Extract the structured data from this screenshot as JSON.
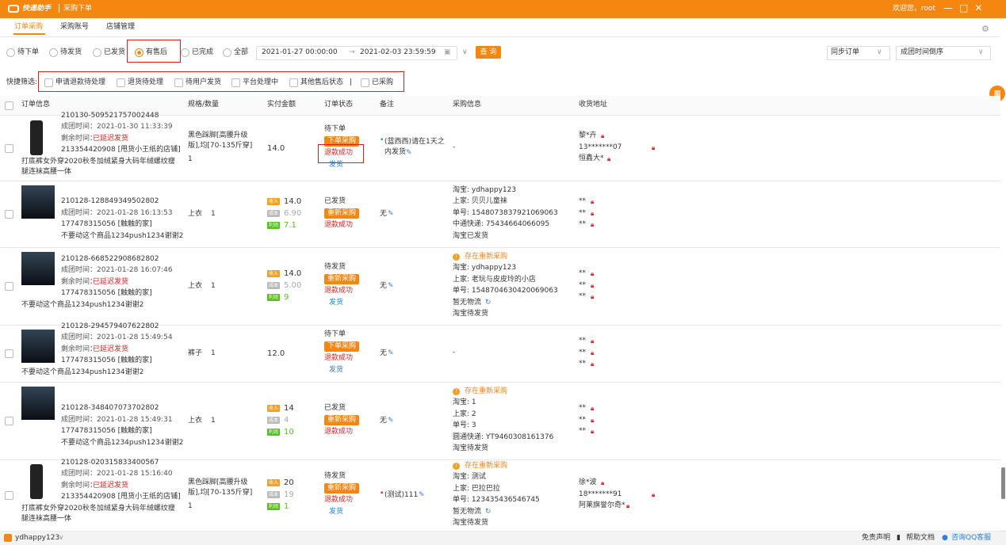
{
  "titlebar": {
    "logo": "快递助手",
    "title": "采购下单",
    "user": "欢迎您，root"
  },
  "tabs": [
    "订单采购",
    "采购账号",
    "店铺管理"
  ],
  "status_filters": [
    "待下单",
    "待发货",
    "已发货",
    "有售后",
    "已完成",
    "全部"
  ],
  "date_start": "2021-01-27 00:00:00",
  "date_arrow": "→",
  "date_end": "2021-02-03 23:59:59",
  "query_button": "查 询",
  "sync_select": "同步订单",
  "sort_select": "成团时间倒序",
  "quick_filter": {
    "label": "快捷筛选:",
    "options": [
      "申请退款待处理",
      "退货待处理",
      "待用户发货",
      "平台处理中",
      "其他售后状态",
      "已采购"
    ]
  },
  "table": {
    "headers": [
      "订单信息",
      "规格/数量",
      "实付金额",
      "订单状态",
      "备注",
      "采购信息",
      "收货地址"
    ],
    "amount_labels": [
      "收入",
      "成本",
      "利润"
    ],
    "rows": [
      {
        "order_id": "210130-509521757002448",
        "group_time": "成团时间：2021-01-30 11:33:39",
        "remaining": {
          "label": "剩余时间：",
          "value": "已延迟发货"
        },
        "shop": "213354420908 [甩货小王纸的店铺]",
        "product": "打底裤女外穿2020秋冬加绒紧身大码年绒螺纹瘦腿连袜高腰一体",
        "spec": "黑色踩脚[高腰升级版],均[70-135斤穿]",
        "qty": "1",
        "amount": "14.0",
        "status": {
          "state": "待下单",
          "button": "下单采购",
          "refund": "退款成功",
          "ship": "发货"
        },
        "remark": "(蓝西西)请在1天之内发货",
        "purchase": {
          "lines": [
            "-"
          ]
        },
        "address": [
          "黎*卉",
          "13*******07",
          "恒鑫大*"
        ]
      },
      {
        "order_id": "210128-128849349502802",
        "group_time": "成团时间：2021-01-28 16:13:53",
        "shop": "177478315056 [触触的家]",
        "product": "不要动这个商品1234push1234谢谢2",
        "spec": "上衣",
        "qty": "1",
        "amount": {
          "income": "14.0",
          "cost": "6.90",
          "profit": "7.1"
        },
        "status": {
          "state": "已发货",
          "button": "重新采购",
          "refund": "退款成功"
        },
        "remark": "无",
        "purchase": {
          "lines": [
            "淘宝: ydhappy123",
            "上家: 贝贝儿童袜",
            "单号: 1548073837921069063",
            "中通快递: 75434664066095",
            "淘宝已发货"
          ]
        },
        "address": [
          "**",
          "**",
          "**"
        ]
      },
      {
        "order_id": "210128-668522908682802",
        "group_time": "成团时间：2021-01-28 16:07:46",
        "remaining": {
          "label": "剩余时间：",
          "value": "已延迟发货"
        },
        "shop": "177478315056 [触触的家]",
        "product": "不要动这个商品1234push1234谢谢2",
        "spec": "上衣",
        "qty": "1",
        "amount": {
          "income": "14.0",
          "cost": "5.00",
          "profit": "9"
        },
        "status": {
          "state": "待发货",
          "button": "重新采购",
          "refund": "退款成功",
          "ship": "发货"
        },
        "remark": "无",
        "purchase": {
          "warning": "存在重新采购",
          "lines": [
            "淘宝: ydhappy123",
            "上家: 老玩与皮皮玲的小店",
            "单号: 1548704630420069063",
            "暂无物流",
            "淘宝待发货"
          ]
        },
        "address": [
          "**",
          "**",
          "**"
        ]
      },
      {
        "order_id": "210128-294579407622802",
        "group_time": "成团时间：2021-01-28 15:49:54",
        "remaining": {
          "label": "剩余时间：",
          "value": "已延迟发货"
        },
        "shop": "177478315056 [触触的家]",
        "product": "不要动这个商品1234push1234谢谢2",
        "spec": "裤子",
        "qty": "1",
        "amount": "12.0",
        "status": {
          "state": "待下单",
          "button": "下单采购",
          "refund": "退款成功",
          "ship": "发货"
        },
        "remark": "无",
        "purchase": {
          "lines": [
            "-"
          ]
        },
        "address": [
          "**",
          "**",
          "**"
        ]
      },
      {
        "order_id": "210128-348407073702802",
        "group_time": "成团时间：2021-01-28 15:49:31",
        "shop": "177478315056 [触触的家]",
        "product": "不要动这个商品1234push1234谢谢2",
        "spec": "上衣",
        "qty": "1",
        "amount": {
          "income": "14",
          "cost": "4",
          "profit": "10"
        },
        "status": {
          "state": "已发货",
          "button": "重新采购",
          "refund": "退款成功"
        },
        "remark": "无",
        "purchase": {
          "warning": "存在重新采购",
          "lines": [
            "淘宝: 1",
            "上家: 2",
            "单号: 3",
            "圆通快递: YT9460308161376",
            "淘宝待发货"
          ]
        },
        "address": [
          "**",
          "**",
          "**"
        ]
      },
      {
        "order_id": "210128-020315833400567",
        "group_time": "成团时间：2021-01-28 15:16:40",
        "remaining": {
          "label": "剩余时间：",
          "value": "已延迟发货"
        },
        "shop": "213354420908 [甩货小王纸的店铺]",
        "product": "打底裤女外穿2020秋冬加绒紧身大码年绒螺纹瘦腿连袜高腰一体",
        "spec": "黑色踩脚[高腰升级版],均[70-135斤穿]",
        "qty": "1",
        "amount": {
          "income": "20",
          "cost": "19",
          "profit": "1"
        },
        "status": {
          "state": "待发货",
          "button": "重新采购",
          "refund": "退款成功",
          "ship": "发货"
        },
        "remark": "(测试)111",
        "purchase": {
          "warning": "存在重新采购",
          "lines": [
            "淘宝: 测试",
            "上家: 巴拉巴拉",
            "单号: 123435436546745",
            "暂无物流",
            "淘宝待发货"
          ]
        },
        "address": [
          "徐*波",
          "18*******91",
          "阿莱旗誉尔奇*"
        ]
      }
    ]
  },
  "footer": {
    "account": "ydhappy123",
    "links": [
      "免责声明",
      "帮助文档",
      "咨询QQ客服"
    ]
  }
}
